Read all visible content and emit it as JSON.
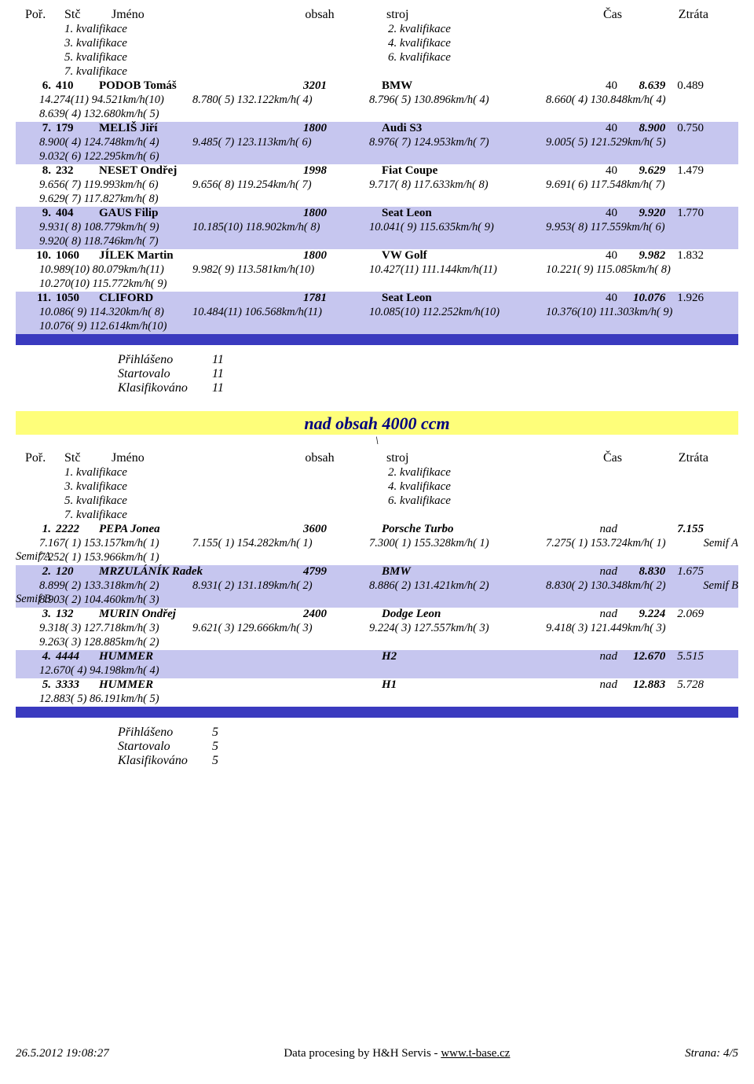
{
  "hdr": {
    "por": "Poř.",
    "stc": "Stč",
    "jmeno": "Jméno",
    "obsah": "obsah",
    "stroj": "stroj",
    "cas": "Čas",
    "ztrata": "Ztráta"
  },
  "kvals": [
    [
      "1. kvalifikace",
      "2. kvalifikace"
    ],
    [
      "3. kvalifikace",
      "4. kvalifikace"
    ],
    [
      "5. kvalifikace",
      "6. kvalifikace"
    ],
    [
      "7. kvalifikace",
      ""
    ]
  ],
  "rows_a": [
    {
      "band": "band-white",
      "por": "6.",
      "stc": "410",
      "name": "PODOB Tomáš",
      "obsah": "3201",
      "stroj": "BMW",
      "cas": "40",
      "t1": "8.639",
      "t2": "0.489",
      "q": [
        [
          "14.274(11)  94.521km/h(10)",
          "8.780( 5)  132.122km/h( 4)",
          "8.796( 5)  130.896km/h( 4)",
          "8.660( 4)  130.848km/h( 4)"
        ],
        [
          "8.639( 4)  132.680km/h( 5)",
          "",
          "",
          ""
        ]
      ],
      "semi": ""
    },
    {
      "band": "band-lav",
      "por": "7.",
      "stc": "179",
      "name": "MELIŠ Jiří",
      "obsah": "1800",
      "stroj": "Audi S3",
      "cas": "40",
      "t1": "8.900",
      "t2": "0.750",
      "q": [
        [
          "8.900( 4)  124.748km/h( 4)",
          "9.485( 7)  123.113km/h( 6)",
          "8.976( 7)  124.953km/h( 7)",
          "9.005( 5)  121.529km/h( 5)"
        ],
        [
          "9.032( 6)  122.295km/h( 6)",
          "",
          "",
          ""
        ]
      ],
      "semi": ""
    },
    {
      "band": "band-white",
      "por": "8.",
      "stc": "232",
      "name": "NESET Ondřej",
      "obsah": "1998",
      "stroj": "Fiat Coupe",
      "cas": "40",
      "t1": "9.629",
      "t2": "1.479",
      "q": [
        [
          "9.656( 7)  119.993km/h( 6)",
          "9.656( 8)  119.254km/h( 7)",
          "9.717( 8)  117.633km/h( 8)",
          "9.691( 6)  117.548km/h( 7)"
        ],
        [
          "9.629( 7)  117.827km/h( 8)",
          "",
          "",
          ""
        ]
      ],
      "semi": ""
    },
    {
      "band": "band-lav",
      "por": "9.",
      "stc": "404",
      "name": "GAUS Filip",
      "obsah": "1800",
      "stroj": "Seat Leon",
      "cas": "40",
      "t1": "9.920",
      "t2": "1.770",
      "q": [
        [
          "9.931( 8)  108.779km/h( 9)",
          "10.185(10)  118.902km/h( 8)",
          "10.041( 9)  115.635km/h( 9)",
          "9.953( 8)  117.559km/h( 6)"
        ],
        [
          "9.920( 8)  118.746km/h( 7)",
          "",
          "",
          ""
        ]
      ],
      "semi": ""
    },
    {
      "band": "band-white",
      "por": "10.",
      "stc": "1060",
      "name": "JÍLEK Martin",
      "obsah": "1800",
      "stroj": "VW Golf",
      "cas": "40",
      "t1": "9.982",
      "t2": "1.832",
      "q": [
        [
          "10.989(10)  80.079km/h(11)",
          "9.982( 9)  113.581km/h(10)",
          "10.427(11)  111.144km/h(11)",
          "10.221( 9)  115.085km/h( 8)"
        ],
        [
          "10.270(10)  115.772km/h( 9)",
          "",
          "",
          ""
        ]
      ],
      "semi": ""
    },
    {
      "band": "band-lav",
      "por": "11.",
      "stc": "1050",
      "name": "CLIFORD",
      "obsah": "1781",
      "stroj": "Seat Leon",
      "cas": "40",
      "t1": "10.076",
      "t2": "1.926",
      "q": [
        [
          "10.086( 9)  114.320km/h( 8)",
          "10.484(11)  106.568km/h(11)",
          "10.085(10)  112.252km/h(10)",
          "10.376(10)  111.303km/h( 9)"
        ],
        [
          "10.076( 9)  112.614km/h(10)",
          "",
          "",
          ""
        ]
      ],
      "semi": ""
    }
  ],
  "stats_a": {
    "prihlaseno": {
      "l": "Přihlášeno",
      "v": "11"
    },
    "startovalo": {
      "l": "Startovalo",
      "v": "11"
    },
    "klasifik": {
      "l": "Klasifikováno",
      "v": "11"
    }
  },
  "section_b": {
    "title": "nad obsah 4000 ccm",
    "sub": "\\"
  },
  "rows_b": [
    {
      "band": "band-white",
      "por": "1.",
      "stc": "2222",
      "name": "PEPA Jonea",
      "obsah": "3600",
      "stroj": "Porsche Turbo",
      "cas": "nad",
      "t1": "7.155",
      "t2": "",
      "q": [
        [
          "7.167( 1)  153.157km/h( 1)",
          "7.155( 1)  154.282km/h( 1)",
          "7.300( 1)  155.328km/h( 1)",
          "7.275( 1)  153.724km/h( 1)"
        ],
        [
          "7.252( 1)  153.966km/h( 1)",
          "",
          "",
          ""
        ]
      ],
      "semi": "Semif A"
    },
    {
      "band": "band-lav",
      "por": "2.",
      "stc": "120",
      "name": "MRZULÁNÍK Radek",
      "obsah": "4799",
      "stroj": "BMW",
      "cas": "nad",
      "t1": "8.830",
      "t2": "1.675",
      "q": [
        [
          "8.899( 2)  133.318km/h( 2)",
          "8.931( 2)  131.189km/h( 2)",
          "8.886( 2)  131.421km/h( 2)",
          "8.830( 2)  130.348km/h( 2)"
        ],
        [
          "8.903( 2)  104.460km/h( 3)",
          "",
          "",
          ""
        ]
      ],
      "semi": "Semif B"
    },
    {
      "band": "band-white",
      "por": "3.",
      "stc": "132",
      "name": "MURIN Ondřej",
      "obsah": "2400",
      "stroj": "Dodge Leon",
      "cas": "nad",
      "t1": "9.224",
      "t2": "2.069",
      "q": [
        [
          "9.318( 3)  127.718km/h( 3)",
          "9.621( 3)  129.666km/h( 3)",
          "9.224( 3)  127.557km/h( 3)",
          "9.418( 3)  121.449km/h( 3)"
        ],
        [
          "9.263( 3)  128.885km/h( 2)",
          "",
          "",
          ""
        ]
      ],
      "semi": ""
    },
    {
      "band": "band-lav",
      "por": "4.",
      "stc": "4444",
      "name": "HUMMER",
      "obsah": "",
      "stroj": "H2",
      "cas": "nad",
      "t1": "12.670",
      "t2": "5.515",
      "q": [
        [
          "12.670( 4)   94.198km/h( 4)",
          "",
          "",
          ""
        ]
      ],
      "semi": ""
    },
    {
      "band": "band-white",
      "por": "5.",
      "stc": "3333",
      "name": "HUMMER",
      "obsah": "",
      "stroj": "H1",
      "cas": "nad",
      "t1": "12.883",
      "t2": "5.728",
      "q": [
        [
          "12.883( 5)   86.191km/h( 5)",
          "",
          "",
          ""
        ]
      ],
      "semi": ""
    }
  ],
  "stats_b": {
    "prihlaseno": {
      "l": "Přihlášeno",
      "v": "5"
    },
    "startovalo": {
      "l": "Startovalo",
      "v": "5"
    },
    "klasifik": {
      "l": "Klasifikováno",
      "v": "5"
    }
  },
  "footer": {
    "date": "26.5.2012 19:08:27",
    "credit": "Data procesing by H&H Servis - ",
    "link": "www.t-base.cz",
    "page": "Strana: 4/5"
  }
}
